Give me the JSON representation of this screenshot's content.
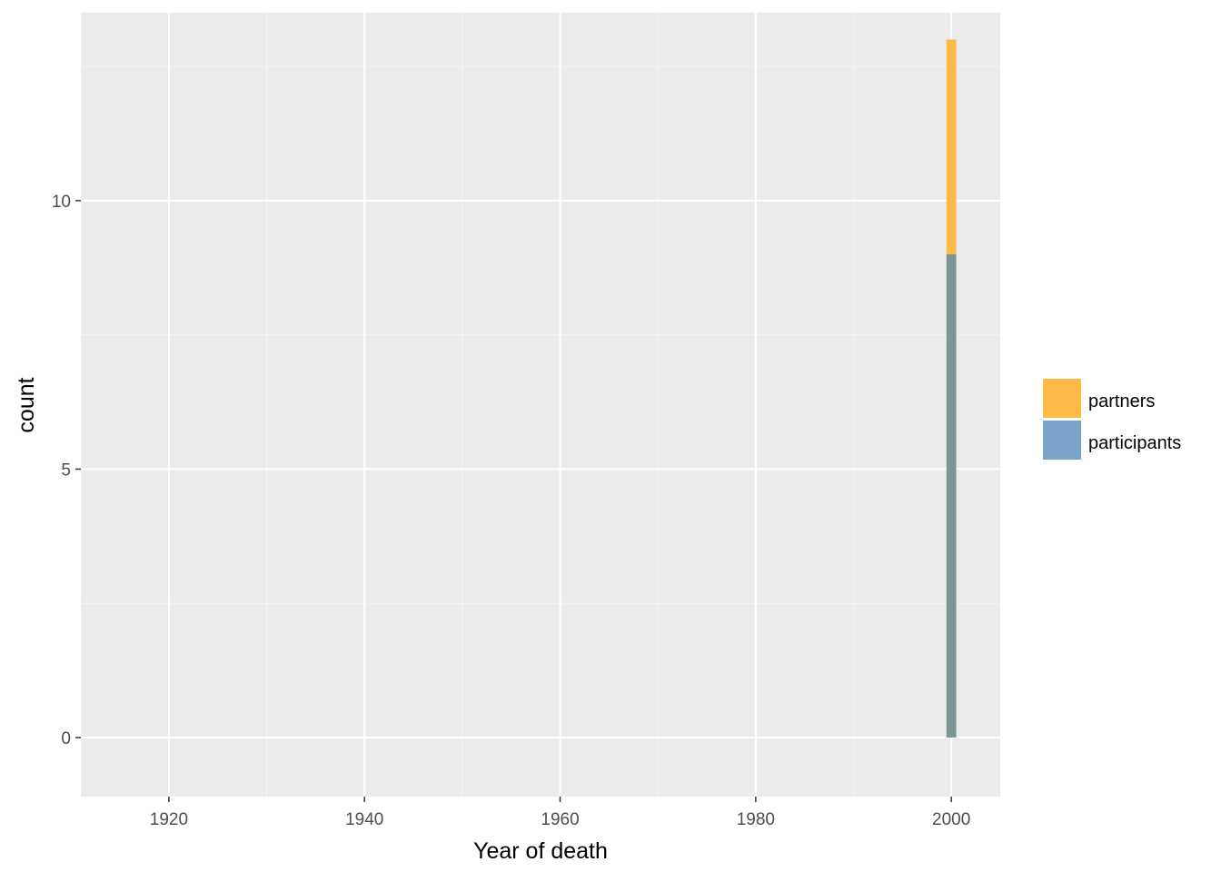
{
  "chart_data": {
    "type": "bar",
    "stacked": true,
    "xlabel": "Year of death",
    "ylabel": "count",
    "xlim": [
      1911,
      2005
    ],
    "ylim": [
      -1.1,
      13.5
    ],
    "x_ticks": [
      "1920",
      "1940",
      "1960",
      "1980",
      "2000"
    ],
    "x_tick_values": [
      1920,
      1940,
      1960,
      1980,
      2000
    ],
    "y_ticks": [
      "0",
      "5",
      "10"
    ],
    "y_tick_values": [
      0,
      5,
      10
    ],
    "grid": true,
    "legend_position": "right",
    "bar_x": [
      2000
    ],
    "bar_width_years": 1,
    "series": [
      {
        "name": "participants",
        "values": [
          9
        ],
        "color": "#7aa4c8",
        "rendered_color": "#7e9595"
      },
      {
        "name": "partners",
        "values": [
          4
        ],
        "color": "#fdba47",
        "rendered_color": "#fdba47"
      }
    ],
    "legend": [
      {
        "name": "partners",
        "color": "#fdba47"
      },
      {
        "name": "participants",
        "color": "#7aa4c8"
      }
    ]
  },
  "colors": {
    "panel_background": "#ebebeb",
    "grid_major": "#ffffff",
    "grid_minor": "#f5f5f5",
    "tick_mark": "#333333"
  }
}
